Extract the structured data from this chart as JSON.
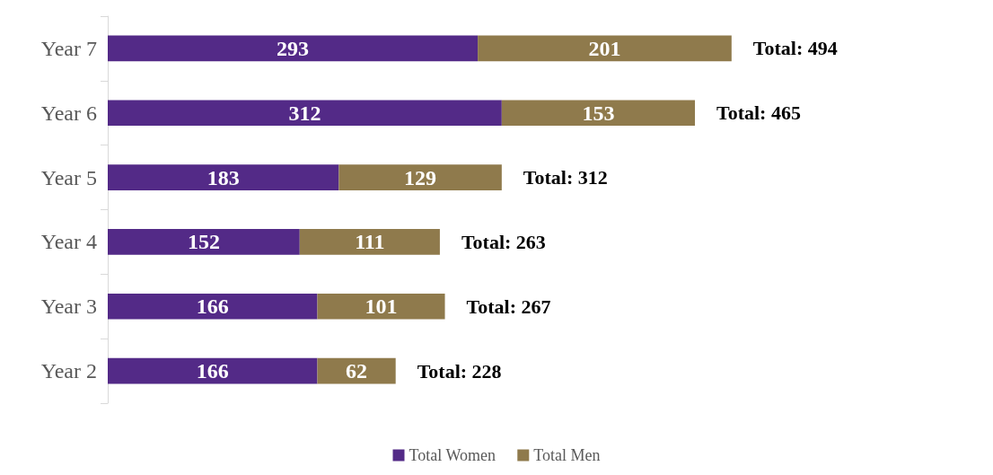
{
  "chart_data": {
    "type": "bar",
    "orientation": "horizontal",
    "stacked": true,
    "data_labels": true,
    "legend": "bottom",
    "categories": [
      "Year 7",
      "Year 6",
      "Year 5",
      "Year 4",
      "Year 3",
      "Year 2"
    ],
    "series": [
      {
        "name": "Total Women",
        "color": "#532a87",
        "values": [
          293,
          312,
          183,
          152,
          166,
          166
        ]
      },
      {
        "name": "Total Men",
        "color": "#8f7a4c",
        "values": [
          201,
          153,
          129,
          111,
          101,
          62
        ]
      }
    ],
    "totals": [
      "Total: 494",
      "Total: 465",
      "Total: 312",
      "Total: 263",
      "Total: 267",
      "Total: 228"
    ]
  }
}
